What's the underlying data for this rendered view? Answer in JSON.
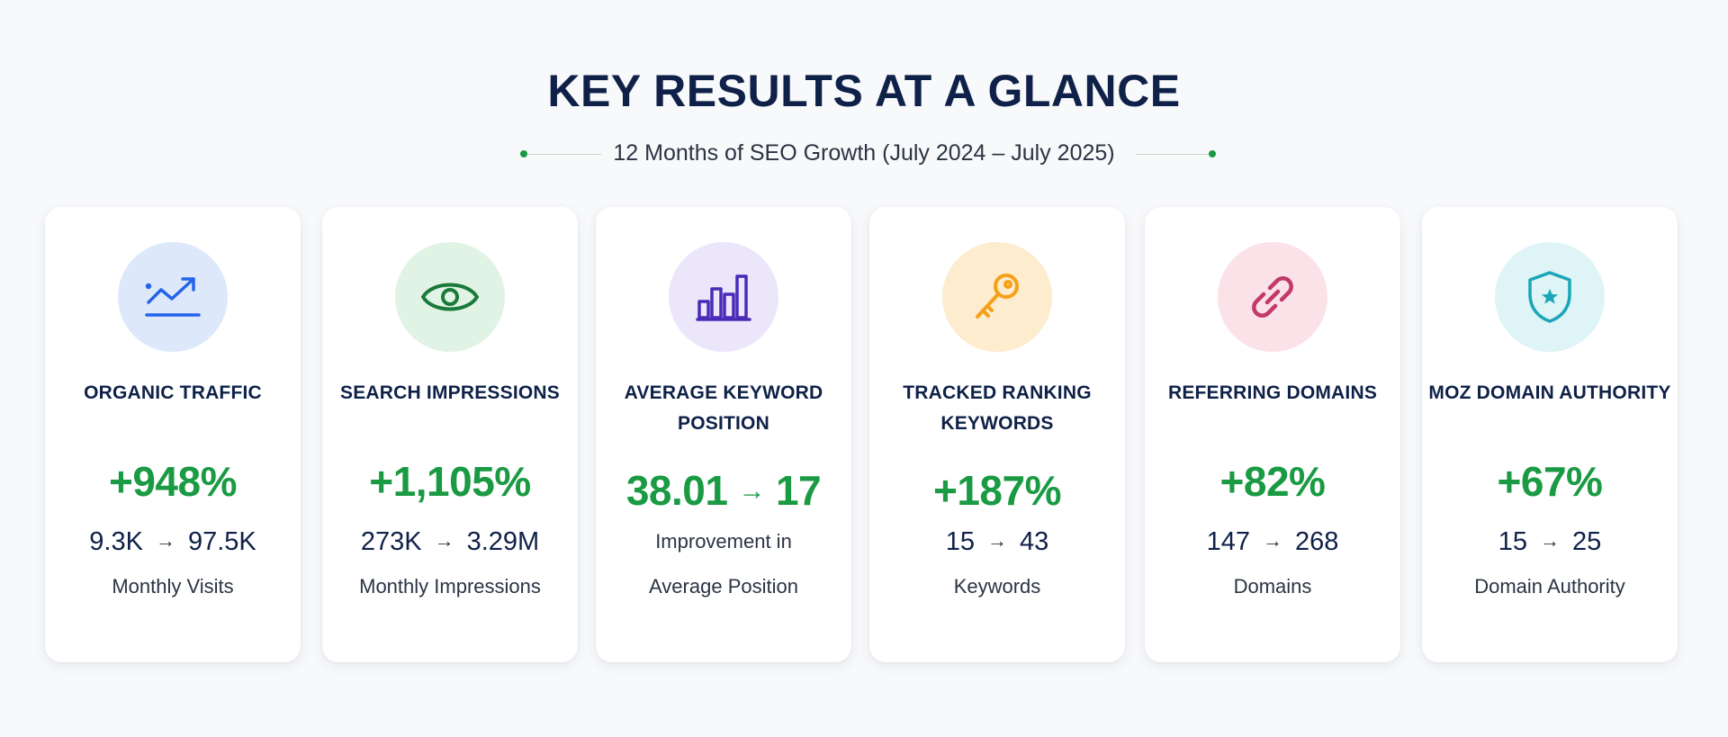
{
  "header": {
    "title": "KEY RESULTS AT A GLANCE",
    "subtitle": "12 Months of SEO Growth (July 2024 – July 2025)",
    "accent_color": "#1a9a43"
  },
  "cards": [
    {
      "icon": "trending-up-icon",
      "icon_color": "#2563eb",
      "icon_bg": "#dde9fb",
      "title": "ORGANIC TRAFFIC",
      "metric": "+948%",
      "from": "9.3K",
      "arrow": "→",
      "to": "97.5K",
      "label": "Monthly Visits"
    },
    {
      "icon": "eye-icon",
      "icon_color": "#1a7a3a",
      "icon_bg": "#e1f3e4",
      "title": "SEARCH IMPRESSIONS",
      "metric": "+1,105%",
      "from": "273K",
      "arrow": "→",
      "to": "3.29M",
      "label": "Monthly Impressions"
    },
    {
      "icon": "bar-chart-icon",
      "icon_color": "#4a2bb8",
      "icon_bg": "#ebe6fa",
      "title_lines": [
        "AVERAGE KEYWORD",
        "POSITION"
      ],
      "metric_from": "38.01",
      "arrow": "→",
      "metric_to": "17",
      "label_lines": [
        "Improvement in",
        "Average Position"
      ]
    },
    {
      "icon": "key-icon",
      "icon_color": "#f5a018",
      "icon_bg": "#fdeccd",
      "title_lines": [
        "TRACKED RANKING",
        "KEYWORDS"
      ],
      "metric": "+187%",
      "from": "15",
      "arrow": "→",
      "to": "43",
      "label": "Keywords"
    },
    {
      "icon": "link-icon",
      "icon_color": "#c23a6a",
      "icon_bg": "#fbe2e8",
      "title": "REFERRING DOMAINS",
      "metric": "+82%",
      "from": "147",
      "arrow": "→",
      "to": "268",
      "label": "Domains"
    },
    {
      "icon": "shield-star-icon",
      "icon_color": "#1aa6b8",
      "icon_bg": "#def4f7",
      "title": "MOZ DOMAIN AUTHORITY",
      "metric": "+67%",
      "from": "15",
      "arrow": "→",
      "to": "25",
      "label": "Domain Authority"
    }
  ]
}
